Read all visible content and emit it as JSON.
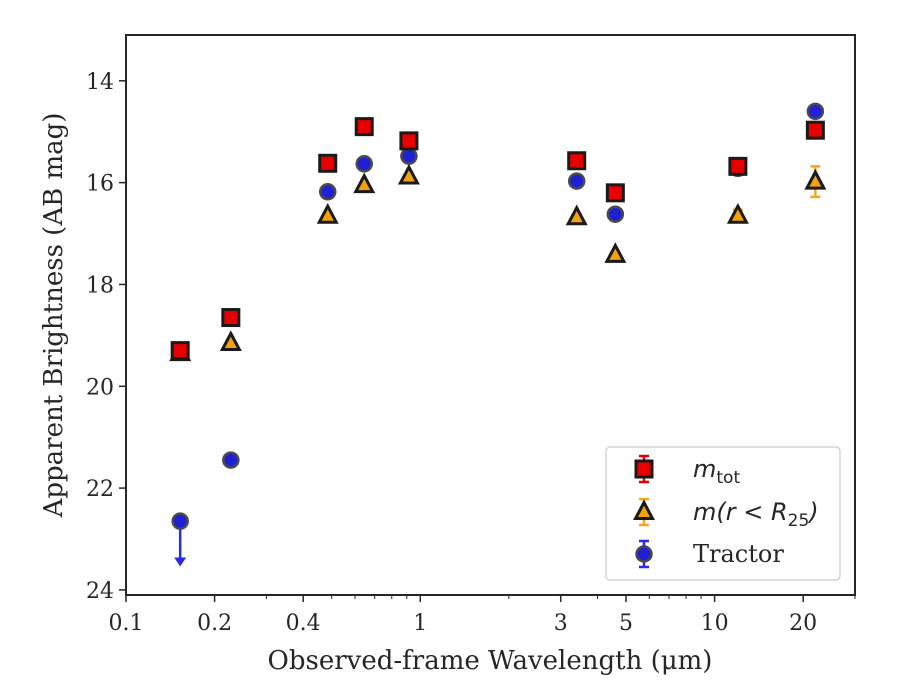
{
  "chart_data": {
    "type": "scatter",
    "xlabel": "Observed-frame Wavelength (μm)",
    "ylabel": "Apparent Brightness (AB mag)",
    "xscale": "log",
    "xlim": [
      0.1,
      30
    ],
    "ylim": [
      24.1,
      13.1
    ],
    "y_inverted": true,
    "grid": false,
    "legend_position": "lower-right",
    "x_ticks": [
      {
        "value": 0.1,
        "label": "0.1"
      },
      {
        "value": 0.2,
        "label": "0.2"
      },
      {
        "value": 0.4,
        "label": "0.4"
      },
      {
        "value": 1,
        "label": "1"
      },
      {
        "value": 3,
        "label": "3"
      },
      {
        "value": 5,
        "label": "5"
      },
      {
        "value": 10,
        "label": "10"
      },
      {
        "value": 20,
        "label": "20"
      }
    ],
    "y_ticks": [
      {
        "value": 14,
        "label": "14"
      },
      {
        "value": 16,
        "label": "16"
      },
      {
        "value": 18,
        "label": "18"
      },
      {
        "value": 20,
        "label": "20"
      },
      {
        "value": 22,
        "label": "22"
      },
      {
        "value": 24,
        "label": "24"
      }
    ],
    "series": [
      {
        "name": "Tractor",
        "marker": "circle",
        "color": "#1f1fd6",
        "errcolor": "#2a2ae8",
        "points": [
          {
            "x": 0.1528,
            "y": 22.65,
            "upper_limit": true
          },
          {
            "x": 0.2271,
            "y": 21.45
          },
          {
            "x": 0.4847,
            "y": 16.18
          },
          {
            "x": 0.6449,
            "y": 15.63
          },
          {
            "x": 0.9148,
            "y": 15.48
          },
          {
            "x": 3.4,
            "y": 15.97
          },
          {
            "x": 4.6,
            "y": 16.62
          },
          {
            "x": 12.0,
            "y": 15.72
          },
          {
            "x": 22.0,
            "y": 14.6
          }
        ]
      },
      {
        "name": "m(r < R25)",
        "marker": "triangle",
        "color": "#f2a20a",
        "errcolor": "#f5a623",
        "points": [
          {
            "x": 0.1528,
            "y": 19.35
          },
          {
            "x": 0.2271,
            "y": 19.15
          },
          {
            "x": 0.4847,
            "y": 16.65
          },
          {
            "x": 0.6449,
            "y": 16.05
          },
          {
            "x": 0.9148,
            "y": 15.88
          },
          {
            "x": 3.4,
            "y": 16.68
          },
          {
            "x": 4.6,
            "y": 17.42
          },
          {
            "x": 12.0,
            "y": 16.65,
            "err": 0.12
          },
          {
            "x": 22.0,
            "y": 15.98,
            "err": 0.3
          }
        ]
      },
      {
        "name": "m_tot",
        "marker": "square",
        "color": "#e80000",
        "errcolor": "#e80000",
        "points": [
          {
            "x": 0.1528,
            "y": 19.3
          },
          {
            "x": 0.2271,
            "y": 18.65
          },
          {
            "x": 0.4847,
            "y": 15.62
          },
          {
            "x": 0.6449,
            "y": 14.9
          },
          {
            "x": 0.9148,
            "y": 15.18
          },
          {
            "x": 3.4,
            "y": 15.57
          },
          {
            "x": 4.6,
            "y": 16.2
          },
          {
            "x": 12.0,
            "y": 15.68
          },
          {
            "x": 22.0,
            "y": 14.97
          }
        ]
      }
    ],
    "legend": [
      {
        "marker": "square",
        "color": "#e80000",
        "errcolor": "#e80000",
        "main": "m",
        "sub": "tot",
        "tail": ""
      },
      {
        "marker": "triangle",
        "color": "#f2a20a",
        "errcolor": "#f5a623",
        "main": "m(r < R",
        "sub": "25",
        "tail": ")"
      },
      {
        "marker": "circle",
        "color": "#1f1fd6",
        "errcolor": "#2a2ae8",
        "main": "Tractor",
        "sub": "",
        "tail": ""
      }
    ]
  }
}
